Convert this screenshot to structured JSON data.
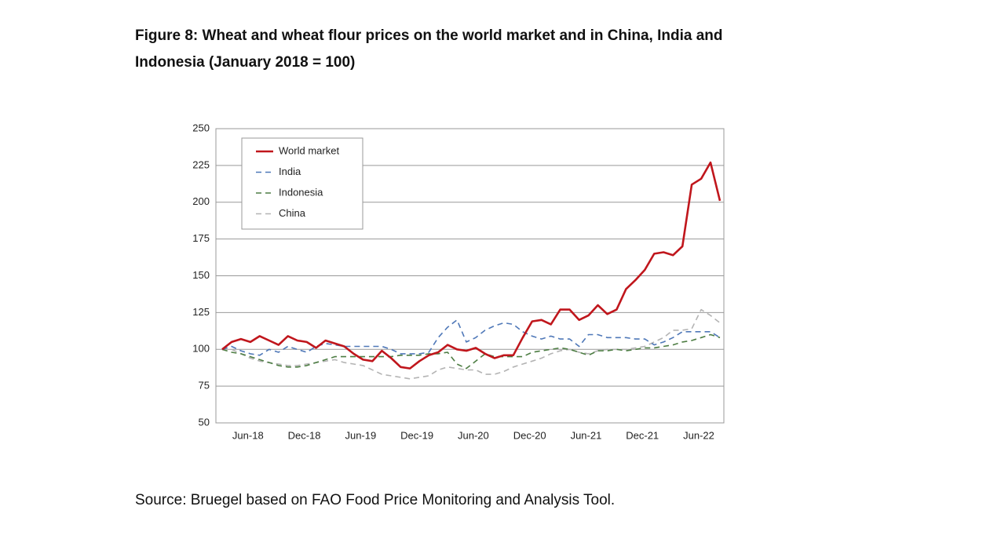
{
  "chart_data": {
    "type": "line",
    "title": "Figure 8: Wheat and wheat flour prices on the world market and in China, India and",
    "subtitle": "Indonesia (January 2018 = 100)",
    "source": "Source: Bruegel based on FAO Food Price Monitoring and Analysis Tool.",
    "categories": [
      null,
      null,
      null,
      null,
      null,
      "Jun-18",
      null,
      null,
      null,
      null,
      null,
      "Dec-18",
      null,
      null,
      null,
      null,
      null,
      "Jun-19",
      null,
      null,
      null,
      null,
      null,
      "Dec-19",
      null,
      null,
      null,
      null,
      null,
      "Jun-20",
      null,
      null,
      null,
      null,
      null,
      "Dec-20",
      null,
      null,
      null,
      null,
      null,
      "Jun-21",
      null,
      null,
      null,
      null,
      null,
      "Dec-21",
      null,
      null,
      null,
      null,
      null,
      "Jun-22"
    ],
    "series": [
      {
        "name": "World market",
        "color": "#c0161c",
        "dashed": false,
        "values": [
          100,
          105,
          107,
          105,
          109,
          106,
          103,
          109,
          106,
          105,
          101,
          106,
          104,
          102,
          97,
          93,
          92,
          99,
          94,
          88,
          87,
          92,
          96,
          98,
          103,
          100,
          99,
          101,
          97,
          94,
          96,
          96,
          108,
          119,
          120,
          117,
          127,
          127,
          120,
          123,
          130,
          124,
          127,
          141,
          147,
          154,
          165,
          166,
          164,
          170,
          212,
          216,
          227,
          201
        ]
      },
      {
        "name": "India",
        "color": "#4f78b8",
        "dashed": true,
        "values": [
          100,
          102,
          99,
          97,
          96,
          100,
          98,
          102,
          100,
          98,
          102,
          104,
          103,
          102,
          102,
          102,
          102,
          102,
          100,
          97,
          97,
          97,
          98,
          108,
          115,
          120,
          105,
          108,
          113,
          116,
          118,
          117,
          112,
          109,
          107,
          109,
          107,
          107,
          102,
          110,
          110,
          108,
          108,
          108,
          107,
          107,
          103,
          105,
          108,
          112,
          112,
          112,
          112,
          108
        ]
      },
      {
        "name": "Indonesia",
        "color": "#4d7d43",
        "dashed": true,
        "values": [
          100,
          98,
          97,
          95,
          93,
          91,
          89,
          88,
          88,
          89,
          91,
          93,
          95,
          95,
          95,
          95,
          95,
          95,
          95,
          96,
          96,
          96,
          97,
          97,
          98,
          90,
          87,
          92,
          97,
          95,
          95,
          95,
          95,
          98,
          99,
          100,
          101,
          100,
          98,
          96,
          99,
          99,
          100,
          99,
          100,
          101,
          101,
          102,
          103,
          105,
          106,
          108,
          110,
          108
        ]
      },
      {
        "name": "China",
        "color": "#b4b4b4",
        "dashed": true,
        "values": [
          100,
          100,
          97,
          94,
          92,
          91,
          90,
          89,
          89,
          90,
          91,
          92,
          93,
          91,
          90,
          89,
          86,
          83,
          82,
          81,
          80,
          81,
          82,
          86,
          88,
          87,
          86,
          86,
          83,
          83,
          85,
          88,
          90,
          92,
          94,
          97,
          99,
          100,
          98,
          97,
          99,
          100,
          100,
          100,
          101,
          102,
          105,
          108,
          113,
          113,
          114,
          127,
          123,
          118
        ]
      }
    ],
    "ylim": [
      50,
      250
    ],
    "yticks": [
      50,
      75,
      100,
      125,
      150,
      175,
      200,
      225,
      250
    ],
    "grid": true,
    "legend": "upper left"
  }
}
